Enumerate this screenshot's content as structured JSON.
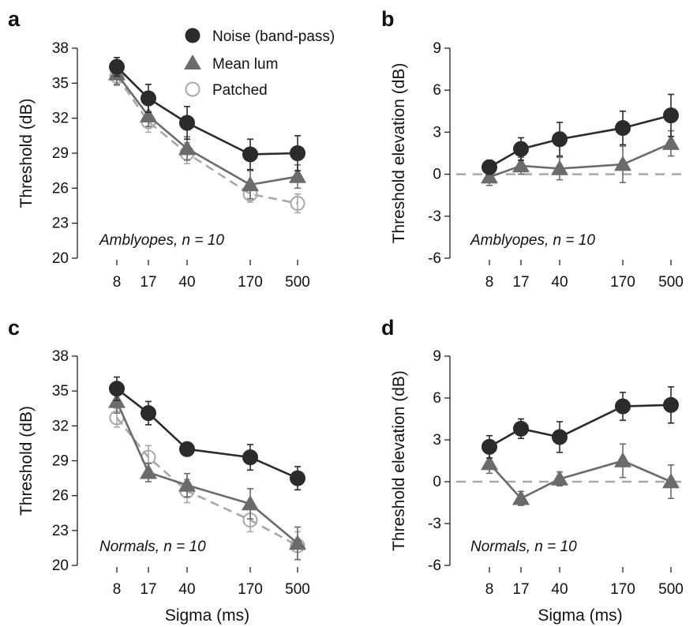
{
  "legend": {
    "placement": "top-right of panel a",
    "entries": [
      {
        "key": "noise",
        "label": "Noise (band-pass)",
        "marker": "filled-circle",
        "color": "#2b2b2b"
      },
      {
        "key": "meanlum",
        "label": "Mean lum",
        "marker": "filled-triangle",
        "color": "#6b6b6b"
      },
      {
        "key": "patched",
        "label": "Patched",
        "marker": "open-circle",
        "color": "#a8a8a8"
      }
    ]
  },
  "chart_data": [
    {
      "panel": "a",
      "type": "line",
      "annotation": "Amblyopes, n = 10",
      "xlabel": "",
      "ylabel": "Threshold (dB)",
      "x": [
        8,
        17,
        40,
        170,
        500
      ],
      "xticks": [
        "8",
        "17",
        "40",
        "170",
        "500"
      ],
      "xscale": "log",
      "ylim": [
        20,
        38
      ],
      "yticks": [
        20,
        23,
        26,
        29,
        32,
        35,
        38
      ],
      "series": [
        {
          "key": "noise",
          "name": "Noise (band-pass)",
          "values": [
            36.4,
            33.7,
            31.6,
            28.9,
            29.0
          ],
          "err": [
            0.8,
            1.2,
            1.4,
            1.3,
            1.5
          ]
        },
        {
          "key": "meanlum",
          "name": "Mean lum",
          "values": [
            35.8,
            32.2,
            29.4,
            26.3,
            27.0
          ],
          "err": [
            0.9,
            0.9,
            1.0,
            1.2,
            1.0
          ]
        },
        {
          "key": "patched",
          "name": "Patched",
          "values": [
            35.6,
            31.7,
            29.0,
            25.5,
            24.7
          ],
          "err": [
            0.8,
            0.9,
            0.9,
            0.7,
            0.8
          ]
        }
      ]
    },
    {
      "panel": "b",
      "type": "line",
      "annotation": "Amblyopes, n = 10",
      "xlabel": "",
      "ylabel": "Threshold elevation (dB)",
      "x": [
        8,
        17,
        40,
        170,
        500
      ],
      "xticks": [
        "8",
        "17",
        "40",
        "170",
        "500"
      ],
      "xscale": "log",
      "ylim": [
        -6,
        9
      ],
      "yticks": [
        -6,
        -3,
        0,
        3,
        6,
        9
      ],
      "reference_line": 0,
      "series": [
        {
          "key": "noise",
          "name": "Noise (band-pass)",
          "values": [
            0.5,
            1.8,
            2.5,
            3.3,
            4.2
          ],
          "err": [
            0.5,
            0.8,
            1.2,
            1.2,
            1.5
          ]
        },
        {
          "key": "meanlum",
          "name": "Mean lum",
          "values": [
            -0.2,
            0.6,
            0.4,
            0.7,
            2.2
          ],
          "err": [
            0.6,
            0.6,
            0.8,
            1.3,
            0.9
          ]
        }
      ]
    },
    {
      "panel": "c",
      "type": "line",
      "annotation": "Normals, n = 10",
      "xlabel": "Sigma (ms)",
      "ylabel": "Threshold (dB)",
      "x": [
        8,
        17,
        40,
        170,
        500
      ],
      "xticks": [
        "8",
        "17",
        "40",
        "170",
        "500"
      ],
      "xscale": "log",
      "ylim": [
        20,
        38
      ],
      "yticks": [
        20,
        23,
        26,
        29,
        32,
        35,
        38
      ],
      "series": [
        {
          "key": "noise",
          "name": "Noise (band-pass)",
          "values": [
            35.2,
            33.1,
            30.0,
            29.3,
            27.5
          ],
          "err": [
            1.0,
            1.0,
            0.5,
            1.1,
            1.0
          ]
        },
        {
          "key": "meanlum",
          "name": "Mean lum",
          "values": [
            34.1,
            28.0,
            26.9,
            25.3,
            21.9
          ],
          "err": [
            1.0,
            0.8,
            1.0,
            1.3,
            1.4
          ]
        },
        {
          "key": "patched",
          "name": "Patched",
          "values": [
            32.7,
            29.3,
            26.4,
            23.9,
            21.7
          ],
          "err": [
            0.8,
            1.0,
            1.0,
            1.0,
            1.2
          ]
        }
      ]
    },
    {
      "panel": "d",
      "type": "line",
      "annotation": "Normals, n = 10",
      "xlabel": "Sigma (ms)",
      "ylabel": "Threshold elevation (dB)",
      "x": [
        8,
        17,
        40,
        170,
        500
      ],
      "xticks": [
        "8",
        "17",
        "40",
        "170",
        "500"
      ],
      "xscale": "log",
      "ylim": [
        -6,
        9
      ],
      "yticks": [
        -6,
        -3,
        0,
        3,
        6,
        9
      ],
      "reference_line": 0,
      "series": [
        {
          "key": "noise",
          "name": "Noise (band-pass)",
          "values": [
            2.5,
            3.8,
            3.2,
            5.4,
            5.5
          ],
          "err": [
            0.8,
            0.7,
            1.1,
            1.0,
            1.3
          ]
        },
        {
          "key": "meanlum",
          "name": "Mean lum",
          "values": [
            1.3,
            -1.2,
            0.2,
            1.5,
            0.0
          ],
          "err": [
            0.7,
            0.5,
            0.5,
            1.2,
            1.2
          ]
        }
      ]
    }
  ]
}
